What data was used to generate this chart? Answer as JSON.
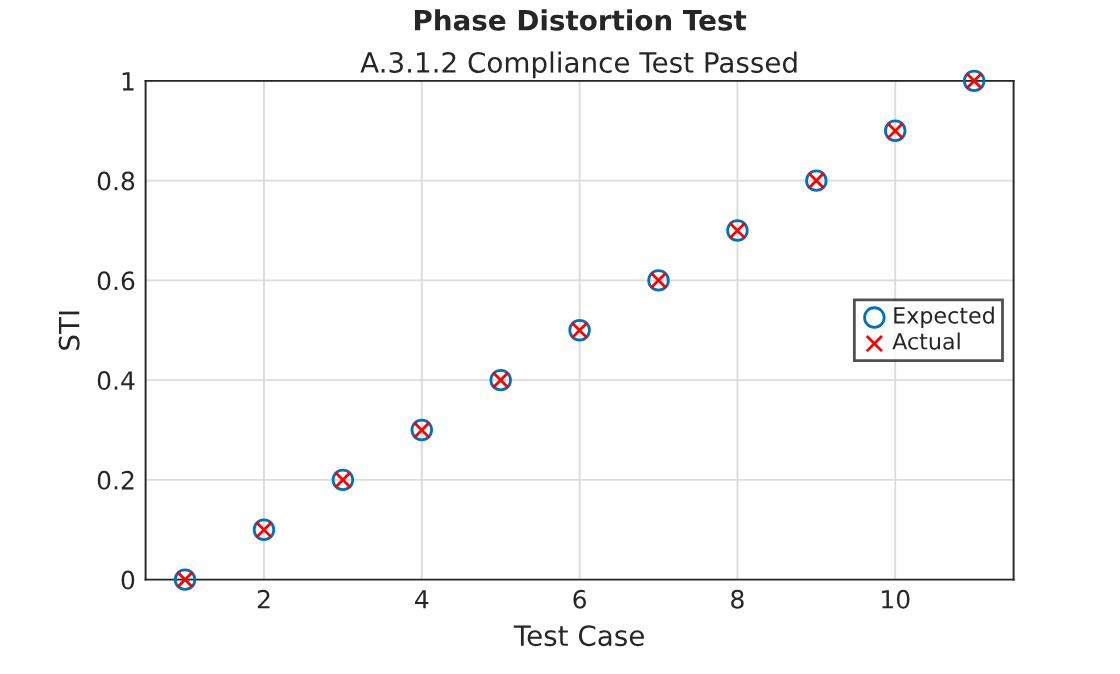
{
  "chart_data": {
    "type": "scatter",
    "title": "Phase Distortion Test",
    "subtitle": "A.3.1.2 Compliance Test Passed",
    "xlabel": "Test Case",
    "ylabel": "STI",
    "x": [
      1,
      2,
      3,
      4,
      5,
      6,
      7,
      8,
      9,
      10,
      11
    ],
    "series": [
      {
        "name": "Expected",
        "color": "#0072bd",
        "marker": "circle",
        "values": [
          0,
          0.1,
          0.2,
          0.3,
          0.4,
          0.5,
          0.6,
          0.7,
          0.8,
          0.9,
          1
        ]
      },
      {
        "name": "Actual",
        "color": "#ff0000",
        "marker": "cross",
        "values": [
          0,
          0.1,
          0.2,
          0.3,
          0.4,
          0.5,
          0.6,
          0.7,
          0.8,
          0.9,
          1
        ]
      }
    ],
    "xlim": [
      0.5,
      11.5
    ],
    "ylim": [
      0,
      1
    ],
    "xticks": [
      2,
      4,
      6,
      8,
      10
    ],
    "yticks": [
      0,
      0.2,
      0.4,
      0.6,
      0.8,
      1
    ],
    "grid": true,
    "legend": "right"
  }
}
